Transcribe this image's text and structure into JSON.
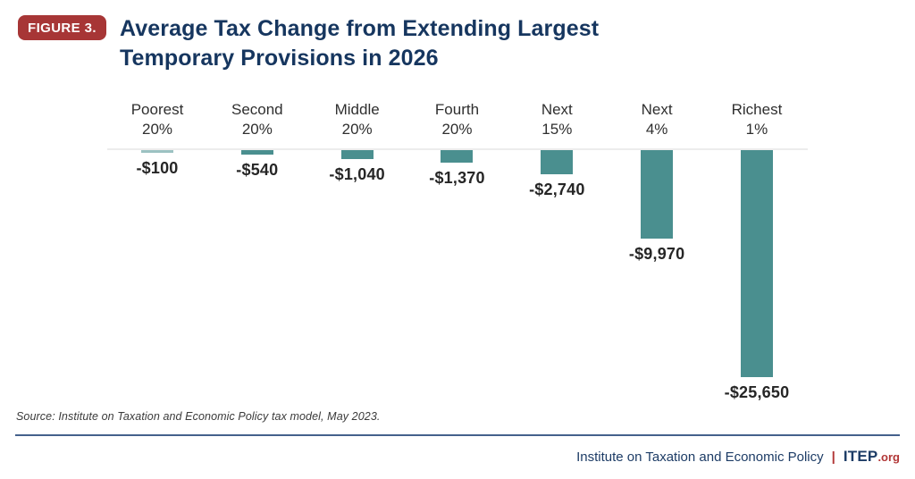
{
  "header": {
    "badge": "FIGURE 3.",
    "title_line1": "Average Tax Change from Extending Largest",
    "title_line2": "Temporary Provisions in 2026"
  },
  "chart_data": {
    "type": "bar",
    "title": "Average Tax Change from Extending Largest Temporary Provisions in 2026",
    "categories": [
      "Poorest 20%",
      "Second 20%",
      "Middle 20%",
      "Fourth 20%",
      "Next 15%",
      "Next 4%",
      "Richest 1%"
    ],
    "category_lines": [
      [
        "Poorest",
        "20%"
      ],
      [
        "Second",
        "20%"
      ],
      [
        "Middle",
        "20%"
      ],
      [
        "Fourth",
        "20%"
      ],
      [
        "Next",
        "15%"
      ],
      [
        "Next",
        "4%"
      ],
      [
        "Richest",
        "1%"
      ]
    ],
    "values": [
      -100,
      -540,
      -1040,
      -1370,
      -2740,
      -9970,
      -25650
    ],
    "value_labels": [
      "-$100",
      "-$540",
      "-$1,040",
      "-$1,370",
      "-$2,740",
      "-$9,970",
      "-$25,650"
    ],
    "xlabel": "",
    "ylabel": "",
    "ylim": [
      -26000,
      0
    ],
    "grid": false,
    "legend": false,
    "orientation": "vertical",
    "bars_extend_downward_from_zero": true,
    "bar_color": "#4a8f8f",
    "baseline_color": "#ececec"
  },
  "source_note": "Source: Institute on Taxation and Economic Policy tax model, May 2023.",
  "footer": {
    "org_name": "Institute on Taxation and Economic Policy",
    "separator": "|",
    "brand": "ITEP",
    "brand_suffix": ".org"
  },
  "colors": {
    "title_navy": "#16365f",
    "badge_red": "#a73636",
    "bar_teal": "#4a8f8f",
    "footer_navy": "#1d3c66",
    "footer_red": "#b23737",
    "divider_blue": "#44618c",
    "zero_line_gray": "#ececec"
  }
}
